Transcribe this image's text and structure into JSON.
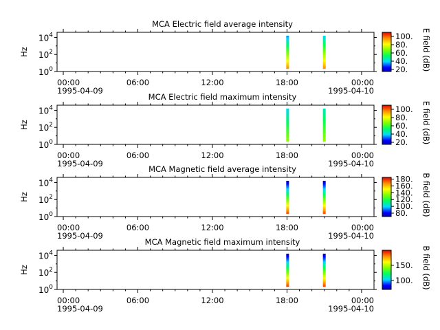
{
  "chart_data": [
    {
      "type": "heatmap",
      "title": "MCA  Electric field average intensity",
      "ylabel": "Hz",
      "colorbar_label": "E field (dB)",
      "colorbar_range": [
        15,
        110
      ],
      "colorbar_ticks": [
        "20.",
        "40.",
        "60.",
        "80.",
        "100."
      ],
      "colorbar_tick_values": [
        20,
        40,
        60,
        80,
        100
      ],
      "y_ticks": [
        "10^0",
        "10^2",
        "10^4"
      ],
      "ylim_log10": [
        0,
        4.6
      ],
      "x_tick_labels": [
        "00:00\n1995-04-09",
        "06:00",
        "12:00",
        "18:00",
        "00:00\n1995-04-10"
      ],
      "xlim_hours": [
        -0.5,
        25
      ],
      "bursts": [
        {
          "time_hours": 18.05,
          "freq_log10": [
            0.35,
            4.2
          ],
          "low_db": 95,
          "high_db": 35
        },
        {
          "time_hours": 21.0,
          "freq_log10": [
            0.35,
            4.2
          ],
          "low_db": 95,
          "high_db": 40
        }
      ]
    },
    {
      "type": "heatmap",
      "title": "MCA  Electric field maximum intensity",
      "ylabel": "Hz",
      "colorbar_label": "E field (dB)",
      "colorbar_range": [
        15,
        110
      ],
      "colorbar_ticks": [
        "20.",
        "40.",
        "60.",
        "80.",
        "100."
      ],
      "colorbar_tick_values": [
        20,
        40,
        60,
        80,
        100
      ],
      "y_ticks": [
        "10^0",
        "10^2",
        "10^4"
      ],
      "ylim_log10": [
        0,
        4.6
      ],
      "x_tick_labels": [
        "00:00\n1995-04-09",
        "06:00",
        "12:00",
        "18:00",
        "00:00\n1995-04-10"
      ],
      "xlim_hours": [
        -0.5,
        25
      ],
      "bursts": [
        {
          "time_hours": 18.05,
          "freq_log10": [
            0.35,
            4.2
          ],
          "low_db": 70,
          "high_db": 40
        },
        {
          "time_hours": 21.0,
          "freq_log10": [
            0.35,
            4.2
          ],
          "low_db": 70,
          "high_db": 45
        }
      ]
    },
    {
      "type": "heatmap",
      "title": "MCA  Magnetic field average intensity",
      "ylabel": "Hz",
      "colorbar_label": "B field (dB)",
      "colorbar_range": [
        70,
        185
      ],
      "colorbar_ticks": [
        "80.",
        "100.",
        "120.",
        "140.",
        "160.",
        "180."
      ],
      "colorbar_tick_values": [
        80,
        100,
        120,
        140,
        160,
        180
      ],
      "y_ticks": [
        "10^0",
        "10^2",
        "10^4"
      ],
      "ylim_log10": [
        0,
        4.6
      ],
      "x_tick_labels": [
        "00:00\n1995-04-09",
        "06:00",
        "12:00",
        "18:00",
        "00:00\n1995-04-10"
      ],
      "xlim_hours": [
        -0.5,
        25
      ],
      "bursts": [
        {
          "time_hours": 18.05,
          "freq_log10": [
            0.35,
            4.2
          ],
          "low_db": 175,
          "high_db": 75
        },
        {
          "time_hours": 21.0,
          "freq_log10": [
            0.35,
            4.2
          ],
          "low_db": 175,
          "high_db": 75
        }
      ]
    },
    {
      "type": "heatmap",
      "title": "MCA  Magnetic field maximum intensity",
      "ylabel": "Hz",
      "colorbar_label": "B field (dB)",
      "colorbar_range": [
        70,
        200
      ],
      "colorbar_ticks": [
        "100.",
        "150."
      ],
      "colorbar_tick_values": [
        100,
        150
      ],
      "y_ticks": [
        "10^0",
        "10^2",
        "10^4"
      ],
      "ylim_log10": [
        0,
        4.6
      ],
      "x_tick_labels": [
        "00:00\n1995-04-09",
        "06:00",
        "12:00",
        "18:00",
        "00:00\n1995-04-10"
      ],
      "xlim_hours": [
        -0.5,
        25
      ],
      "bursts": [
        {
          "time_hours": 18.05,
          "freq_log10": [
            0.35,
            4.2
          ],
          "low_db": 190,
          "high_db": 75
        },
        {
          "time_hours": 21.0,
          "freq_log10": [
            0.35,
            4.2
          ],
          "low_db": 190,
          "high_db": 75
        }
      ]
    }
  ]
}
